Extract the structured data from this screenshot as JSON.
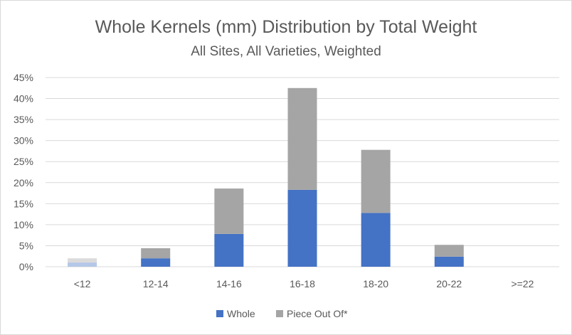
{
  "chart_data": {
    "type": "bar",
    "stacked": true,
    "title": "Whole Kernels (mm) Distribution by Total Weight",
    "subtitle": "All Sites, All Varieties, Weighted",
    "categories": [
      "<12",
      "12-14",
      "14-16",
      "16-18",
      "18-20",
      "20-22",
      ">=22"
    ],
    "series": [
      {
        "name": "Whole",
        "color": "#4472c4",
        "faded_color": "#b4c7e7",
        "values": [
          1.0,
          2.0,
          7.8,
          18.3,
          12.8,
          2.4,
          0
        ]
      },
      {
        "name": "Piece Out Of*",
        "color": "#a5a5a5",
        "faded_color": "#dbdbdb",
        "values": [
          1.0,
          2.4,
          10.8,
          24.2,
          15.0,
          2.8,
          0
        ]
      }
    ],
    "faded_categories": [
      "<12"
    ],
    "ylim": [
      0,
      45
    ],
    "yticks": [
      0,
      5,
      10,
      15,
      20,
      25,
      30,
      35,
      40,
      45
    ],
    "ytick_labels": [
      "0%",
      "5%",
      "10%",
      "15%",
      "20%",
      "25%",
      "30%",
      "35%",
      "40%",
      "45%"
    ],
    "xlabel": "",
    "ylabel": "",
    "grid": true,
    "legend_position": "bottom"
  }
}
